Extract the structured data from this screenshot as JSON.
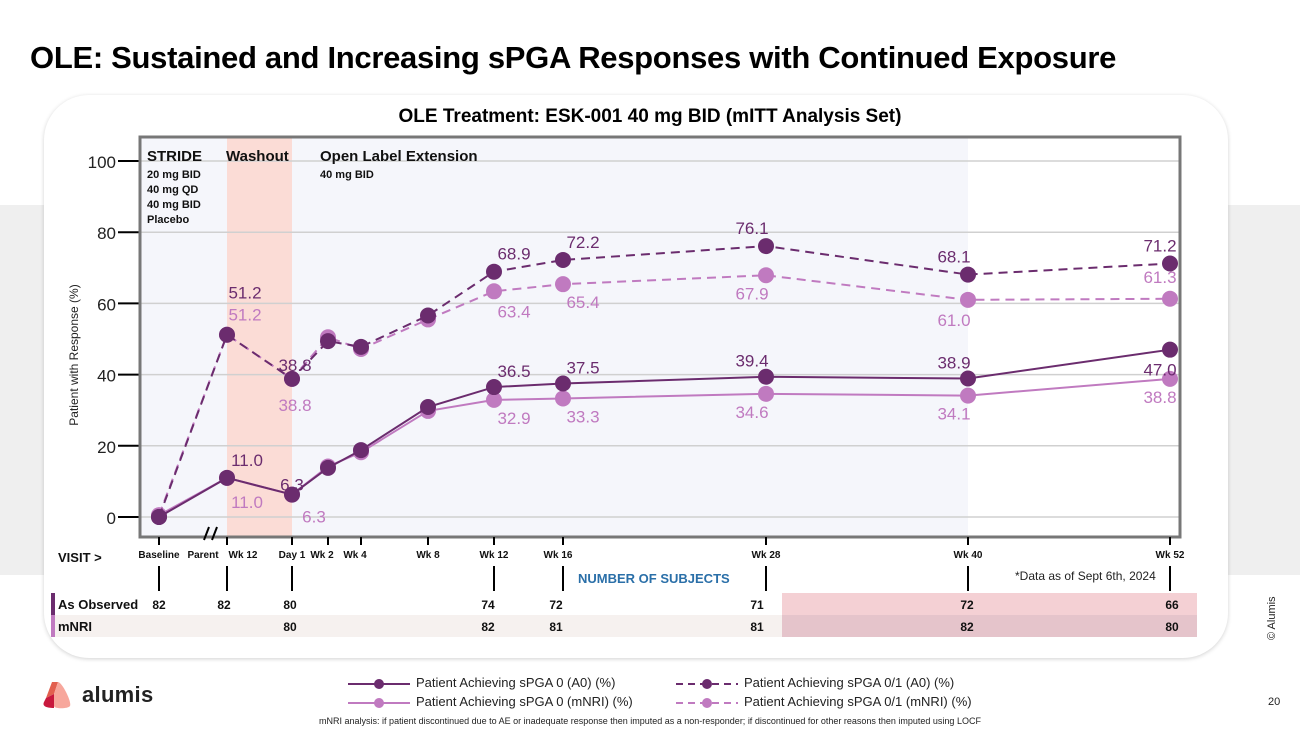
{
  "slide": {
    "title": "OLE: Sustained and Increasing sPGA Responses with Continued Exposure",
    "page_number": "20",
    "copyright": "© Alumis",
    "brand": "alumis",
    "footnote": "mNRI analysis: if patient discontinued due to AE or inadequate response then imputed as a non-responder; if discontinued for other reasons then imputed using LOCF",
    "data_as_of": "*Data as of Sept 6th, 2024"
  },
  "chart_data": {
    "type": "line",
    "title": "OLE Treatment: ESK-001 40 mg BID (mITT Analysis Set)",
    "xlabel": "VISIT >",
    "ylabel": "Patient with Response (%)",
    "ylim": [
      0,
      100
    ],
    "yticks": [
      0,
      20,
      40,
      60,
      80,
      100
    ],
    "grid": true,
    "legend_position": "bottom",
    "x": [
      "Baseline",
      "Parent Wk 12",
      "Day 1",
      "Wk 2",
      "Wk 4",
      "Wk 8",
      "Wk 12",
      "Wk 16",
      "Wk 28",
      "Wk 40",
      "Wk 52"
    ],
    "axis_break_between": [
      "Baseline",
      "Parent Wk 12"
    ],
    "regions": [
      {
        "label": "STRIDE",
        "sublabels": [
          "20 mg BID",
          "40 mg QD",
          "40 mg BID",
          "Placebo"
        ],
        "from": "Baseline",
        "to": "Parent Wk 12"
      },
      {
        "label": "Washout",
        "sublabels": [],
        "from": "Parent Wk 12",
        "to": "Day 1",
        "color": "#fbdcd6"
      },
      {
        "label": "Open Label Extension",
        "sublabels": [
          "40 mg BID"
        ],
        "from": "Day 1",
        "to": "Wk 40"
      }
    ],
    "series": [
      {
        "name": "Patient Achieving sPGA 0 (A0) (%)",
        "style": "solid",
        "color": "#6b2c6e",
        "values": [
          0,
          11.0,
          6.3,
          13.8,
          18.8,
          30.9,
          36.5,
          37.5,
          39.4,
          38.9,
          47.0
        ],
        "labels": [
          null,
          "11.0",
          "6.3",
          null,
          null,
          null,
          "36.5",
          "37.5",
          "39.4",
          "38.9",
          "47.0"
        ]
      },
      {
        "name": "Patient Achieving sPGA 0 (mNRI) (%)",
        "style": "solid",
        "color": "#c07ac0",
        "values": [
          0.5,
          11.0,
          6.3,
          14.2,
          18.2,
          29.8,
          32.9,
          33.3,
          34.6,
          34.1,
          38.8
        ],
        "labels": [
          null,
          "11.0",
          "6.3",
          null,
          null,
          null,
          "32.9",
          "33.3",
          "34.6",
          "34.1",
          "38.8"
        ]
      },
      {
        "name": "Patient Achieving sPGA 0/1 (A0) (%)",
        "style": "dashed",
        "color": "#6b2c6e",
        "values": [
          0,
          51.2,
          38.8,
          49.4,
          47.8,
          56.6,
          68.9,
          72.2,
          76.1,
          68.1,
          71.2
        ],
        "labels": [
          null,
          "51.2",
          "38.8",
          null,
          null,
          null,
          "68.9",
          "72.2",
          "76.1",
          "68.1",
          "71.2"
        ]
      },
      {
        "name": "Patient Achieving sPGA 0/1 (mNRI) (%)",
        "style": "dashed",
        "color": "#c07ac0",
        "values": [
          0.5,
          51.2,
          38.8,
          50.5,
          47.2,
          55.5,
          63.4,
          65.4,
          67.9,
          61.0,
          61.3
        ],
        "labels": [
          null,
          "51.2",
          "38.8",
          null,
          null,
          null,
          "63.4",
          "65.4",
          "67.9",
          "61.0",
          "61.3"
        ]
      }
    ],
    "subjects_table": {
      "title": "NUMBER OF SUBJECTS",
      "columns": [
        "Baseline",
        "Parent Wk 12",
        "Day 1",
        "Wk 12",
        "Wk 16",
        "Wk 28",
        "Wk 40",
        "Wk 52"
      ],
      "rows": [
        {
          "label": "As Observed",
          "values": [
            "82",
            "82",
            "80",
            "74",
            "72",
            "71",
            "72",
            "66"
          ]
        },
        {
          "label": "mNRI",
          "values": [
            "",
            "",
            "80",
            "82",
            "81",
            "81",
            "82",
            "80"
          ]
        }
      ]
    }
  },
  "colors": {
    "dark_purple": "#6b2c6e",
    "light_purple": "#c07ac0",
    "washout": "#fbdcd6",
    "plot_bg": "#f5f6fb",
    "table_blue": "#2a6fa8",
    "highlight_row1": "#f4d0d4",
    "highlight_row2": "#e5c4cb"
  }
}
